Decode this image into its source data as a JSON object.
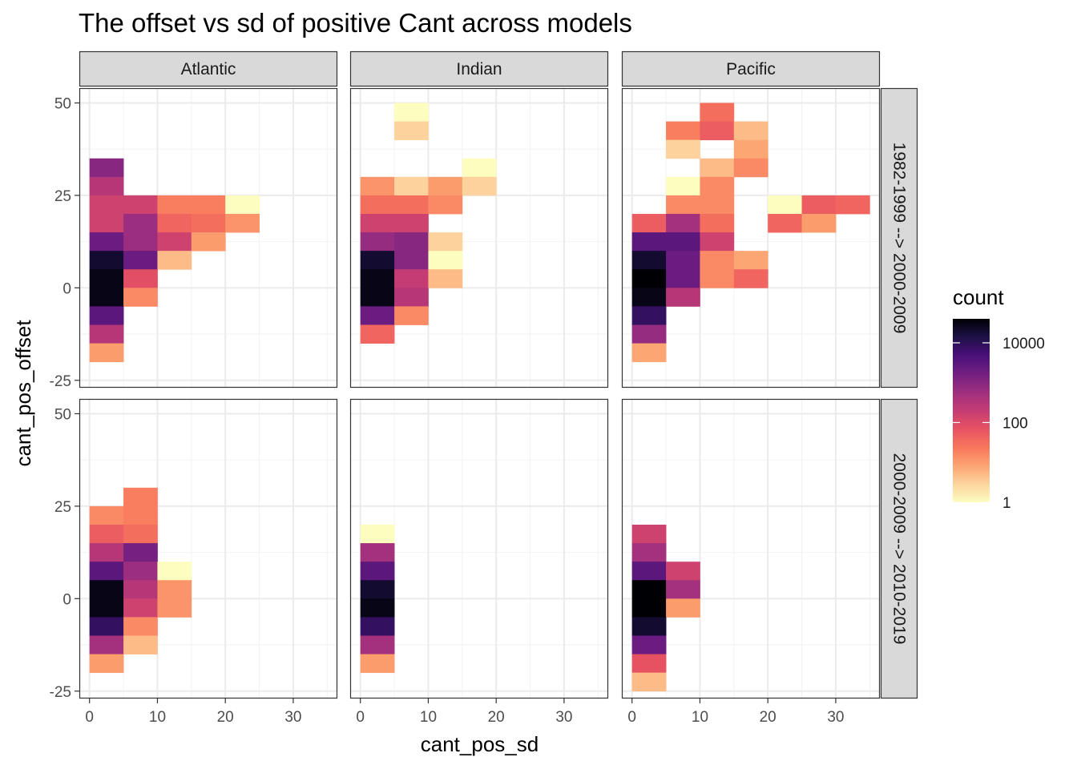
{
  "chart_data": {
    "type": "heatmap",
    "title": "The offset vs sd of positive Cant across models",
    "xlabel": "cant_pos_sd",
    "ylabel": "cant_pos_offset",
    "xlim": [
      -1.5,
      36.5
    ],
    "ylim": [
      -27,
      54
    ],
    "x_ticks": [
      0,
      10,
      20,
      30
    ],
    "y_ticks": [
      -25,
      0,
      25,
      50
    ],
    "bin_width_x": 5,
    "bin_height_y": 5,
    "grid": true,
    "legend": {
      "title": "count",
      "scale": "log10",
      "position": "right",
      "range": [
        1,
        40000
      ],
      "breaks": [
        1,
        100,
        10000
      ],
      "break_labels": [
        "1",
        "100",
        "10000"
      ],
      "palette": [
        "#fcfdbf",
        "#fdd49e",
        "#fca471",
        "#f8765c",
        "#e75263",
        "#c53c74",
        "#9e2f7f",
        "#721f81",
        "#4a1079",
        "#1d1147",
        "#000004"
      ]
    },
    "facet_cols": [
      "Atlantic",
      "Indian",
      "Pacific"
    ],
    "facet_rows": [
      "1982-1999 --> 2000-2009",
      "2000-2009 --> 2010-2019"
    ],
    "panels": [
      {
        "col": "Atlantic",
        "row": "1982-1999 --> 2000-2009",
        "bins": [
          [
            2.5,
            32.5,
            1000
          ],
          [
            2.5,
            27.5,
            300
          ],
          [
            2.5,
            22.5,
            150
          ],
          [
            7.5,
            22.5,
            150
          ],
          [
            12.5,
            22.5,
            20
          ],
          [
            17.5,
            22.5,
            20
          ],
          [
            22.5,
            22.5,
            1
          ],
          [
            2.5,
            17.5,
            150
          ],
          [
            7.5,
            17.5,
            600
          ],
          [
            12.5,
            17.5,
            40
          ],
          [
            17.5,
            17.5,
            30
          ],
          [
            22.5,
            17.5,
            12
          ],
          [
            2.5,
            12.5,
            2000
          ],
          [
            7.5,
            12.5,
            600
          ],
          [
            12.5,
            12.5,
            150
          ],
          [
            17.5,
            12.5,
            10
          ],
          [
            2.5,
            7.5,
            20000
          ],
          [
            7.5,
            7.5,
            2000
          ],
          [
            12.5,
            7.5,
            5
          ],
          [
            2.5,
            2.5,
            30000
          ],
          [
            7.5,
            2.5,
            80
          ],
          [
            2.5,
            -2.5,
            30000
          ],
          [
            7.5,
            -2.5,
            15
          ],
          [
            2.5,
            -7.5,
            3000
          ],
          [
            2.5,
            -12.5,
            300
          ],
          [
            2.5,
            -17.5,
            10
          ]
        ]
      },
      {
        "col": "Indian",
        "row": "1982-1999 --> 2000-2009",
        "bins": [
          [
            7.5,
            47.5,
            1
          ],
          [
            7.5,
            42.5,
            3
          ],
          [
            17.5,
            32.5,
            1
          ],
          [
            2.5,
            27.5,
            12
          ],
          [
            7.5,
            27.5,
            3
          ],
          [
            12.5,
            27.5,
            10
          ],
          [
            17.5,
            27.5,
            3
          ],
          [
            2.5,
            22.5,
            30
          ],
          [
            7.5,
            22.5,
            30
          ],
          [
            12.5,
            22.5,
            15
          ],
          [
            2.5,
            17.5,
            150
          ],
          [
            7.5,
            17.5,
            150
          ],
          [
            2.5,
            12.5,
            700
          ],
          [
            7.5,
            12.5,
            1000
          ],
          [
            12.5,
            12.5,
            3
          ],
          [
            2.5,
            7.5,
            20000
          ],
          [
            7.5,
            7.5,
            1000
          ],
          [
            12.5,
            7.5,
            1
          ],
          [
            2.5,
            2.5,
            30000
          ],
          [
            7.5,
            2.5,
            200
          ],
          [
            12.5,
            2.5,
            5
          ],
          [
            2.5,
            -2.5,
            30000
          ],
          [
            7.5,
            -2.5,
            300
          ],
          [
            2.5,
            -7.5,
            2000
          ],
          [
            7.5,
            -7.5,
            15
          ],
          [
            2.5,
            -12.5,
            40
          ]
        ]
      },
      {
        "col": "Pacific",
        "row": "1982-1999 --> 2000-2009",
        "bins": [
          [
            12.5,
            47.5,
            30
          ],
          [
            7.5,
            42.5,
            20
          ],
          [
            12.5,
            42.5,
            50
          ],
          [
            17.5,
            42.5,
            5
          ],
          [
            7.5,
            37.5,
            3
          ],
          [
            17.5,
            37.5,
            8
          ],
          [
            12.5,
            32.5,
            5
          ],
          [
            17.5,
            32.5,
            15
          ],
          [
            7.5,
            27.5,
            1
          ],
          [
            12.5,
            27.5,
            15
          ],
          [
            7.5,
            22.5,
            15
          ],
          [
            12.5,
            22.5,
            15
          ],
          [
            22.5,
            22.5,
            1
          ],
          [
            27.5,
            22.5,
            50
          ],
          [
            32.5,
            22.5,
            40
          ],
          [
            2.5,
            17.5,
            50
          ],
          [
            7.5,
            17.5,
            500
          ],
          [
            12.5,
            17.5,
            30
          ],
          [
            22.5,
            17.5,
            40
          ],
          [
            27.5,
            17.5,
            10
          ],
          [
            2.5,
            12.5,
            3000
          ],
          [
            7.5,
            12.5,
            3000
          ],
          [
            12.5,
            12.5,
            150
          ],
          [
            2.5,
            7.5,
            20000
          ],
          [
            7.5,
            7.5,
            2000
          ],
          [
            12.5,
            7.5,
            15
          ],
          [
            17.5,
            7.5,
            8
          ],
          [
            2.5,
            2.5,
            40000
          ],
          [
            7.5,
            2.5,
            2000
          ],
          [
            12.5,
            2.5,
            15
          ],
          [
            17.5,
            2.5,
            40
          ],
          [
            2.5,
            -2.5,
            30000
          ],
          [
            7.5,
            -2.5,
            300
          ],
          [
            2.5,
            -7.5,
            8000
          ],
          [
            2.5,
            -12.5,
            700
          ],
          [
            2.5,
            -17.5,
            8
          ]
        ]
      },
      {
        "col": "Atlantic",
        "row": "2000-2009 --> 2010-2019",
        "bins": [
          [
            7.5,
            27.5,
            20
          ],
          [
            2.5,
            22.5,
            15
          ],
          [
            7.5,
            22.5,
            20
          ],
          [
            2.5,
            17.5,
            50
          ],
          [
            7.5,
            17.5,
            30
          ],
          [
            2.5,
            12.5,
            300
          ],
          [
            7.5,
            12.5,
            1500
          ],
          [
            2.5,
            7.5,
            3000
          ],
          [
            7.5,
            7.5,
            600
          ],
          [
            12.5,
            7.5,
            1
          ],
          [
            2.5,
            2.5,
            30000
          ],
          [
            7.5,
            2.5,
            300
          ],
          [
            12.5,
            2.5,
            12
          ],
          [
            2.5,
            -2.5,
            30000
          ],
          [
            7.5,
            -2.5,
            150
          ],
          [
            12.5,
            -2.5,
            12
          ],
          [
            2.5,
            -7.5,
            8000
          ],
          [
            7.5,
            -7.5,
            15
          ],
          [
            2.5,
            -12.5,
            500
          ],
          [
            7.5,
            -12.5,
            5
          ],
          [
            2.5,
            -17.5,
            10
          ]
        ]
      },
      {
        "col": "Indian",
        "row": "2000-2009 --> 2010-2019",
        "bins": [
          [
            2.5,
            17.5,
            1
          ],
          [
            2.5,
            12.5,
            500
          ],
          [
            2.5,
            7.5,
            3000
          ],
          [
            2.5,
            2.5,
            20000
          ],
          [
            2.5,
            -2.5,
            30000
          ],
          [
            2.5,
            -7.5,
            8000
          ],
          [
            2.5,
            -12.5,
            500
          ],
          [
            2.5,
            -17.5,
            10
          ]
        ]
      },
      {
        "col": "Pacific",
        "row": "2000-2009 --> 2010-2019",
        "bins": [
          [
            2.5,
            17.5,
            150
          ],
          [
            2.5,
            12.5,
            500
          ],
          [
            2.5,
            7.5,
            3000
          ],
          [
            7.5,
            7.5,
            150
          ],
          [
            2.5,
            2.5,
            40000
          ],
          [
            7.5,
            2.5,
            500
          ],
          [
            2.5,
            -2.5,
            40000
          ],
          [
            7.5,
            -2.5,
            10
          ],
          [
            2.5,
            -7.5,
            20000
          ],
          [
            2.5,
            -12.5,
            2000
          ],
          [
            2.5,
            -17.5,
            70
          ],
          [
            2.5,
            -22.5,
            5
          ]
        ]
      }
    ]
  }
}
